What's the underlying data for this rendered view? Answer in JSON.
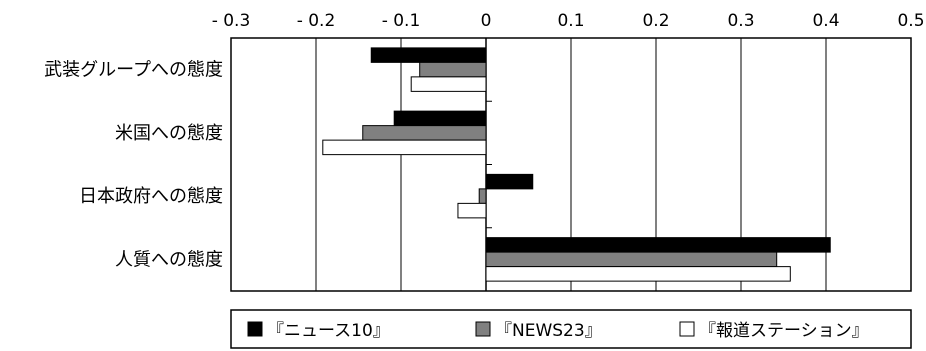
{
  "chart_data": {
    "type": "bar",
    "orientation": "horizontal",
    "title": "",
    "xlabel": "",
    "ylabel": "",
    "xlim": [
      -0.3,
      0.5
    ],
    "x_ticks": [
      -0.3,
      -0.2,
      -0.1,
      0,
      0.1,
      0.2,
      0.3,
      0.4,
      0.5
    ],
    "x_tick_labels": [
      "- 0.3",
      "- 0.2",
      "- 0.1",
      "0",
      "0.1",
      "0.2",
      "0.3",
      "0.4",
      "0.5"
    ],
    "x_tick_position": "top",
    "grid": "vertical",
    "categories": [
      "武装グループへの態度",
      "米国への態度",
      "日本政府への態度",
      "人質への態度"
    ],
    "series": [
      {
        "name": "『ニュース10』",
        "color": "#000000",
        "values": [
          -0.135,
          -0.108,
          0.055,
          0.405
        ]
      },
      {
        "name": "『NEWS23』",
        "color": "#808080",
        "values": [
          -0.078,
          -0.145,
          -0.008,
          0.342
        ]
      },
      {
        "name": "『報道ステーション』",
        "color": "#ffffff",
        "values": [
          -0.088,
          -0.192,
          -0.033,
          0.358
        ]
      }
    ],
    "legend": {
      "position": "bottom",
      "markers": [
        "■",
        "■",
        "□"
      ]
    }
  }
}
